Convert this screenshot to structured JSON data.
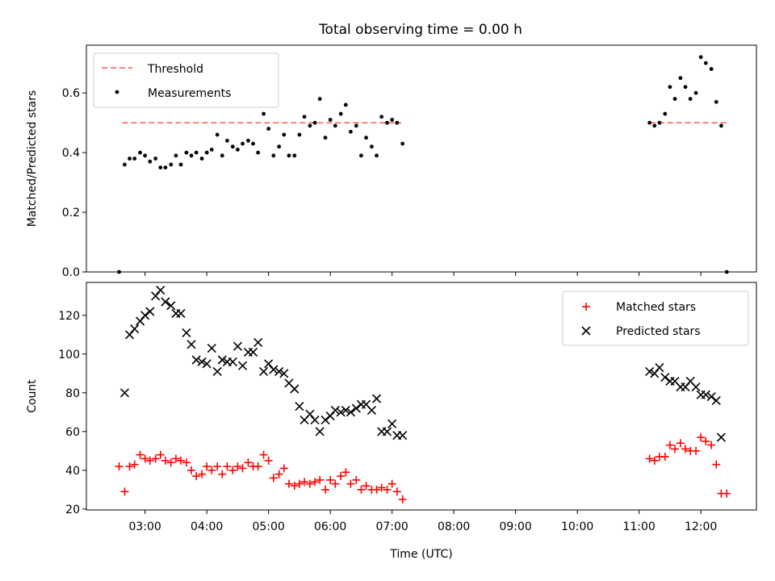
{
  "figure": {
    "title": "Total observing time = 0.00 h"
  },
  "chart_data": [
    {
      "type": "scatter",
      "ylabel": "Matched/Predicted stars",
      "xlabel": "",
      "x_unit": "hour of day (UTC)",
      "xlim": [
        2.05,
        12.9
      ],
      "ylim": [
        0,
        0.76
      ],
      "yticks": [
        0.0,
        0.2,
        0.4,
        0.6
      ],
      "ytick_labels": [
        "0.0",
        "0.2",
        "0.4",
        "0.6"
      ],
      "threshold": {
        "name": "Threshold",
        "y": 0.5,
        "color": "#ff7f7f",
        "segments": [
          [
            2.63,
            7.15
          ],
          [
            11.17,
            12.42
          ]
        ]
      },
      "legend": {
        "placement": "upper-left",
        "entries": [
          "Threshold",
          "Measurements"
        ]
      },
      "series": [
        {
          "name": "Measurements",
          "color": "#000000",
          "points": [
            [
              2.58,
              0.0
            ],
            [
              2.67,
              0.36
            ],
            [
              2.75,
              0.38
            ],
            [
              2.83,
              0.38
            ],
            [
              2.92,
              0.4
            ],
            [
              3.0,
              0.39
            ],
            [
              3.08,
              0.37
            ],
            [
              3.17,
              0.38
            ],
            [
              3.25,
              0.35
            ],
            [
              3.33,
              0.35
            ],
            [
              3.42,
              0.36
            ],
            [
              3.5,
              0.39
            ],
            [
              3.58,
              0.36
            ],
            [
              3.67,
              0.4
            ],
            [
              3.75,
              0.39
            ],
            [
              3.83,
              0.4
            ],
            [
              3.92,
              0.38
            ],
            [
              4.0,
              0.4
            ],
            [
              4.08,
              0.41
            ],
            [
              4.17,
              0.46
            ],
            [
              4.25,
              0.39
            ],
            [
              4.33,
              0.44
            ],
            [
              4.42,
              0.42
            ],
            [
              4.5,
              0.41
            ],
            [
              4.58,
              0.43
            ],
            [
              4.67,
              0.44
            ],
            [
              4.75,
              0.43
            ],
            [
              4.83,
              0.4
            ],
            [
              4.92,
              0.53
            ],
            [
              5.0,
              0.48
            ],
            [
              5.08,
              0.39
            ],
            [
              5.17,
              0.42
            ],
            [
              5.25,
              0.46
            ],
            [
              5.33,
              0.39
            ],
            [
              5.42,
              0.39
            ],
            [
              5.5,
              0.46
            ],
            [
              5.58,
              0.52
            ],
            [
              5.67,
              0.49
            ],
            [
              5.75,
              0.5
            ],
            [
              5.83,
              0.58
            ],
            [
              5.92,
              0.45
            ],
            [
              6.0,
              0.51
            ],
            [
              6.08,
              0.49
            ],
            [
              6.17,
              0.53
            ],
            [
              6.25,
              0.56
            ],
            [
              6.33,
              0.47
            ],
            [
              6.42,
              0.49
            ],
            [
              6.5,
              0.39
            ],
            [
              6.58,
              0.45
            ],
            [
              6.67,
              0.42
            ],
            [
              6.75,
              0.39
            ],
            [
              6.83,
              0.52
            ],
            [
              6.92,
              0.5
            ],
            [
              7.0,
              0.51
            ],
            [
              7.08,
              0.5
            ],
            [
              7.17,
              0.43
            ],
            [
              11.17,
              0.5
            ],
            [
              11.25,
              0.49
            ],
            [
              11.33,
              0.5
            ],
            [
              11.42,
              0.53
            ],
            [
              11.5,
              0.62
            ],
            [
              11.58,
              0.58
            ],
            [
              11.67,
              0.65
            ],
            [
              11.75,
              0.62
            ],
            [
              11.83,
              0.58
            ],
            [
              11.92,
              0.6
            ],
            [
              12.0,
              0.72
            ],
            [
              12.08,
              0.7
            ],
            [
              12.17,
              0.68
            ],
            [
              12.25,
              0.57
            ],
            [
              12.33,
              0.49
            ],
            [
              12.42,
              0.0
            ]
          ]
        }
      ]
    },
    {
      "type": "scatter",
      "xlabel": "Time (UTC)",
      "ylabel": "Count",
      "x_unit": "hour of day (UTC)",
      "xlim": [
        2.05,
        12.9
      ],
      "ylim": [
        19.5,
        137
      ],
      "xticks": [
        3,
        4,
        5,
        6,
        7,
        8,
        9,
        10,
        11,
        12
      ],
      "xtick_labels": [
        "03:00",
        "04:00",
        "05:00",
        "06:00",
        "07:00",
        "08:00",
        "09:00",
        "10:00",
        "11:00",
        "12:00"
      ],
      "yticks": [
        20,
        40,
        60,
        80,
        100,
        120
      ],
      "ytick_labels": [
        "20",
        "40",
        "60",
        "80",
        "100",
        "120"
      ],
      "legend": {
        "placement": "upper-right",
        "entries": [
          "Matched stars",
          "Predicted stars"
        ]
      },
      "series": [
        {
          "name": "Matched stars",
          "color": "#ff0000",
          "marker": "plus",
          "points": [
            [
              2.58,
              42
            ],
            [
              2.67,
              29
            ],
            [
              2.75,
              42
            ],
            [
              2.83,
              43
            ],
            [
              2.92,
              48
            ],
            [
              3.0,
              46
            ],
            [
              3.08,
              45
            ],
            [
              3.17,
              46
            ],
            [
              3.25,
              48
            ],
            [
              3.33,
              45
            ],
            [
              3.42,
              44
            ],
            [
              3.5,
              46
            ],
            [
              3.58,
              45
            ],
            [
              3.67,
              44
            ],
            [
              3.75,
              40
            ],
            [
              3.83,
              37
            ],
            [
              3.92,
              38
            ],
            [
              4.0,
              42
            ],
            [
              4.08,
              40
            ],
            [
              4.17,
              42
            ],
            [
              4.25,
              38
            ],
            [
              4.33,
              42
            ],
            [
              4.42,
              40
            ],
            [
              4.5,
              42
            ],
            [
              4.58,
              41
            ],
            [
              4.67,
              44
            ],
            [
              4.75,
              42
            ],
            [
              4.83,
              42
            ],
            [
              4.92,
              48
            ],
            [
              5.0,
              45
            ],
            [
              5.08,
              36
            ],
            [
              5.17,
              38
            ],
            [
              5.25,
              41
            ],
            [
              5.33,
              33
            ],
            [
              5.42,
              32
            ],
            [
              5.5,
              33
            ],
            [
              5.58,
              34
            ],
            [
              5.67,
              33
            ],
            [
              5.75,
              34
            ],
            [
              5.83,
              35
            ],
            [
              5.92,
              30
            ],
            [
              6.0,
              35
            ],
            [
              6.08,
              33
            ],
            [
              6.17,
              37
            ],
            [
              6.25,
              39
            ],
            [
              6.33,
              33
            ],
            [
              6.42,
              35
            ],
            [
              6.5,
              30
            ],
            [
              6.58,
              32
            ],
            [
              6.67,
              30
            ],
            [
              6.75,
              30
            ],
            [
              6.83,
              31
            ],
            [
              6.92,
              30
            ],
            [
              7.0,
              33
            ],
            [
              7.08,
              29
            ],
            [
              7.17,
              25
            ],
            [
              11.17,
              46
            ],
            [
              11.25,
              45
            ],
            [
              11.33,
              47
            ],
            [
              11.42,
              47
            ],
            [
              11.5,
              53
            ],
            [
              11.58,
              51
            ],
            [
              11.67,
              54
            ],
            [
              11.75,
              51
            ],
            [
              11.83,
              50
            ],
            [
              11.92,
              50
            ],
            [
              12.0,
              57
            ],
            [
              12.08,
              55
            ],
            [
              12.17,
              53
            ],
            [
              12.25,
              43
            ],
            [
              12.33,
              28
            ],
            [
              12.42,
              28
            ]
          ]
        },
        {
          "name": "Predicted stars",
          "color": "#000000",
          "marker": "x",
          "points": [
            [
              2.67,
              80
            ],
            [
              2.75,
              110
            ],
            [
              2.83,
              113
            ],
            [
              2.92,
              117
            ],
            [
              3.0,
              120
            ],
            [
              3.08,
              122
            ],
            [
              3.17,
              130
            ],
            [
              3.25,
              133
            ],
            [
              3.33,
              127
            ],
            [
              3.42,
              125
            ],
            [
              3.5,
              121
            ],
            [
              3.58,
              121
            ],
            [
              3.67,
              111
            ],
            [
              3.75,
              105
            ],
            [
              3.83,
              97
            ],
            [
              3.92,
              96
            ],
            [
              4.0,
              95
            ],
            [
              4.08,
              103
            ],
            [
              4.17,
              91
            ],
            [
              4.25,
              97
            ],
            [
              4.33,
              96
            ],
            [
              4.42,
              96
            ],
            [
              4.5,
              104
            ],
            [
              4.58,
              94
            ],
            [
              4.67,
              101
            ],
            [
              4.75,
              101
            ],
            [
              4.83,
              106
            ],
            [
              4.92,
              91
            ],
            [
              5.0,
              95
            ],
            [
              5.08,
              92
            ],
            [
              5.17,
              91
            ],
            [
              5.25,
              90
            ],
            [
              5.33,
              85
            ],
            [
              5.42,
              82
            ],
            [
              5.5,
              73
            ],
            [
              5.58,
              66
            ],
            [
              5.67,
              69
            ],
            [
              5.75,
              66
            ],
            [
              5.83,
              60
            ],
            [
              5.92,
              66
            ],
            [
              6.0,
              68
            ],
            [
              6.08,
              71
            ],
            [
              6.17,
              70
            ],
            [
              6.25,
              71
            ],
            [
              6.33,
              70
            ],
            [
              6.42,
              72
            ],
            [
              6.5,
              74
            ],
            [
              6.58,
              74
            ],
            [
              6.67,
              71
            ],
            [
              6.75,
              77
            ],
            [
              6.83,
              60
            ],
            [
              6.92,
              60
            ],
            [
              7.0,
              64
            ],
            [
              7.08,
              58
            ],
            [
              7.17,
              58
            ],
            [
              11.17,
              91
            ],
            [
              11.25,
              90
            ],
            [
              11.33,
              93
            ],
            [
              11.42,
              88
            ],
            [
              11.5,
              86
            ],
            [
              11.58,
              86
            ],
            [
              11.67,
              83
            ],
            [
              11.75,
              83
            ],
            [
              11.83,
              86
            ],
            [
              11.92,
              83
            ],
            [
              12.0,
              79
            ],
            [
              12.08,
              79
            ],
            [
              12.17,
              78
            ],
            [
              12.25,
              76
            ],
            [
              12.33,
              57
            ]
          ]
        }
      ]
    }
  ]
}
